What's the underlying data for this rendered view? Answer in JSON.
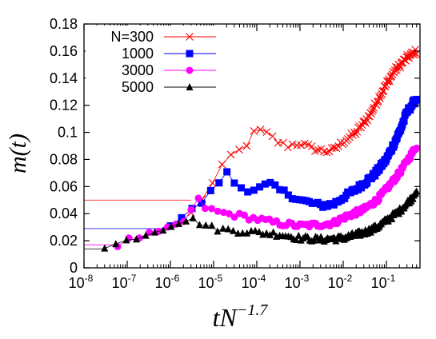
{
  "chart_data": {
    "type": "scatter",
    "title": "",
    "xlabel": {
      "base": "tN",
      "exponent": "−1.7"
    },
    "ylabel": "m(t)",
    "xscale": "log",
    "xlim": [
      1e-08,
      0.6
    ],
    "ylim": [
      0,
      0.18
    ],
    "x_ticks": [
      {
        "base": "10",
        "exp": "-8"
      },
      {
        "base": "10",
        "exp": "-7"
      },
      {
        "base": "10",
        "exp": "-6"
      },
      {
        "base": "10",
        "exp": "-5"
      },
      {
        "base": "10",
        "exp": "-4"
      },
      {
        "base": "10",
        "exp": "-3"
      },
      {
        "base": "10",
        "exp": "-2"
      },
      {
        "base": "10",
        "exp": "-1"
      }
    ],
    "y_ticks": [
      "0",
      "0.02",
      "0.04",
      "0.06",
      "0.08",
      "0.1",
      "0.12",
      "0.14",
      "0.16",
      "0.18"
    ],
    "legend_position": "top-left",
    "grid": false,
    "series": [
      {
        "name": "N=300",
        "marker": "x",
        "color": "#ff0000",
        "initial_value": 0.05,
        "x": [
          3e-06,
          5e-06,
          8e-06,
          1.2e-05,
          2e-05,
          3e-05,
          5e-05,
          7e-05,
          0.0001,
          0.00014,
          0.0002,
          0.0003,
          0.0005,
          0.001,
          0.002,
          0.004,
          0.006,
          0.01,
          0.02,
          0.04,
          0.08,
          0.15,
          0.3,
          0.5
        ],
        "y": [
          0.04,
          0.05,
          0.058,
          0.068,
          0.08,
          0.085,
          0.088,
          0.095,
          0.103,
          0.1,
          0.098,
          0.093,
          0.09,
          0.092,
          0.088,
          0.086,
          0.087,
          0.093,
          0.1,
          0.112,
          0.13,
          0.145,
          0.155,
          0.16
        ]
      },
      {
        "name": "1000",
        "marker": "square",
        "color": "#0000ff",
        "initial_value": 0.029,
        "x": [
          1e-06,
          2e-06,
          4e-06,
          6e-06,
          1e-05,
          1.5e-05,
          2e-05,
          3e-05,
          5e-05,
          0.0001,
          0.0002,
          0.0003,
          0.0005,
          0.001,
          0.003,
          0.006,
          0.01,
          0.02,
          0.05,
          0.1,
          0.2,
          0.3,
          0.5
        ],
        "y": [
          0.032,
          0.038,
          0.045,
          0.05,
          0.058,
          0.066,
          0.07,
          0.063,
          0.058,
          0.058,
          0.062,
          0.058,
          0.055,
          0.05,
          0.046,
          0.047,
          0.052,
          0.058,
          0.068,
          0.08,
          0.1,
          0.115,
          0.125
        ]
      },
      {
        "name": "3000",
        "marker": "circle",
        "color": "#ff00ff",
        "initial_value": 0.017,
        "x": [
          6e-08,
          1e-07,
          2e-07,
          4e-07,
          7e-07,
          1e-06,
          2e-06,
          3e-06,
          4.5e-06,
          6e-06,
          1e-05,
          2e-05,
          5e-05,
          0.0001,
          0.0003,
          0.001,
          0.003,
          0.006,
          0.01,
          0.03,
          0.06,
          0.1,
          0.2,
          0.4,
          0.5
        ],
        "y": [
          0.017,
          0.02,
          0.023,
          0.025,
          0.027,
          0.029,
          0.034,
          0.042,
          0.05,
          0.045,
          0.042,
          0.04,
          0.038,
          0.036,
          0.033,
          0.031,
          0.032,
          0.033,
          0.037,
          0.043,
          0.05,
          0.058,
          0.07,
          0.085,
          0.09
        ]
      },
      {
        "name": "5000",
        "marker": "triangle",
        "color": "#000000",
        "initial_value": 0.014,
        "x": [
          3e-08,
          5e-08,
          1e-07,
          2e-07,
          3e-07,
          5e-07,
          8e-07,
          1.5e-06,
          3e-06,
          5e-06,
          1e-05,
          2e-05,
          5e-05,
          0.0001,
          0.0003,
          0.001,
          0.003,
          0.01,
          0.03,
          0.06,
          0.1,
          0.2,
          0.4,
          0.5
        ],
        "y": [
          0.014,
          0.017,
          0.02,
          0.024,
          0.025,
          0.028,
          0.03,
          0.034,
          0.036,
          0.033,
          0.029,
          0.028,
          0.027,
          0.026,
          0.025,
          0.022,
          0.021,
          0.022,
          0.026,
          0.03,
          0.035,
          0.042,
          0.052,
          0.058
        ]
      }
    ]
  }
}
